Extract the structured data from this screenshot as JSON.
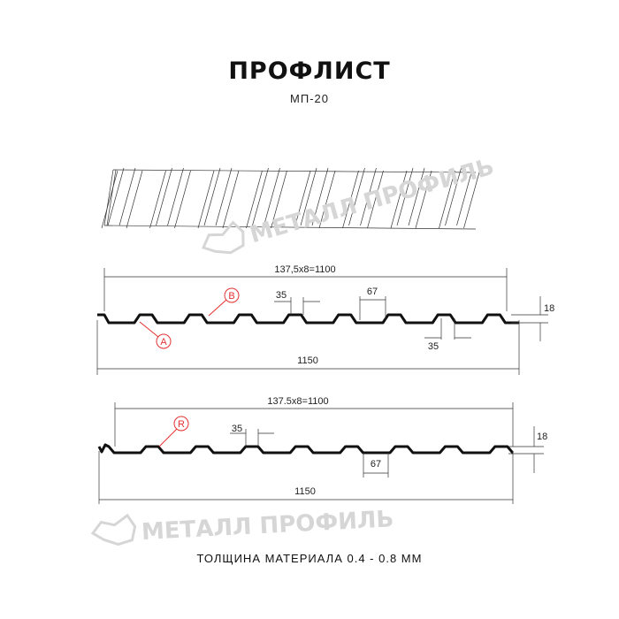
{
  "header": {
    "title": "ПРОФЛИСТ",
    "subtitle": "МП-20"
  },
  "watermark": {
    "text": "МЕТАЛЛ ПРОФИЛЬ",
    "color": "#d6d6d6"
  },
  "profile_1": {
    "pitch_label": "137,5x8=1100",
    "width_label": "1150",
    "rib_top_label": "35",
    "rib_gap_label": "67",
    "rib_bottom_label": "35",
    "height_label": "18",
    "callout_a": "A",
    "callout_b": "B"
  },
  "profile_2": {
    "pitch_label": "137.5x8=1100",
    "width_label": "1150",
    "rib_top_label": "35",
    "rib_gap_label": "67",
    "height_label": "18",
    "callout_r": "R"
  },
  "colors": {
    "callout": "#e53030",
    "profile": "#111111"
  },
  "footer": {
    "thickness": "ТОЛЩИНА МАТЕРИАЛА 0.4 - 0.8 ММ"
  }
}
